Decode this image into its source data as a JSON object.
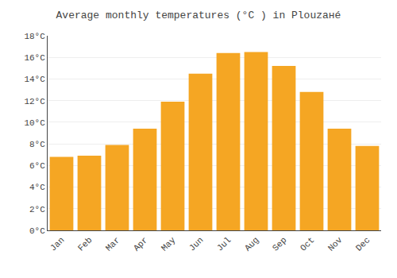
{
  "chart_data": {
    "type": "bar",
    "title": "Average monthly temperatures (°C ) in Plouzанé",
    "categories": [
      "Jan",
      "Feb",
      "Mar",
      "Apr",
      "May",
      "Jun",
      "Jul",
      "Aug",
      "Sep",
      "Oct",
      "Nov",
      "Dec"
    ],
    "values": [
      6.8,
      6.9,
      7.9,
      9.4,
      11.9,
      14.5,
      16.4,
      16.5,
      15.2,
      12.8,
      9.4,
      7.8
    ],
    "color": "#F5A623",
    "ylim": [
      0,
      18
    ],
    "yticks": [
      {
        "value": 0,
        "label": "0°C"
      },
      {
        "value": 2,
        "label": "2°C"
      },
      {
        "value": 4,
        "label": "4°C"
      },
      {
        "value": 6,
        "label": "6°C"
      },
      {
        "value": 8,
        "label": "8°C"
      },
      {
        "value": 10,
        "label": "10°C"
      },
      {
        "value": 12,
        "label": "12°C"
      },
      {
        "value": 14,
        "label": "14°C"
      },
      {
        "value": 16,
        "label": "16°C"
      },
      {
        "value": 18,
        "label": "18°C"
      }
    ],
    "grid": true
  }
}
